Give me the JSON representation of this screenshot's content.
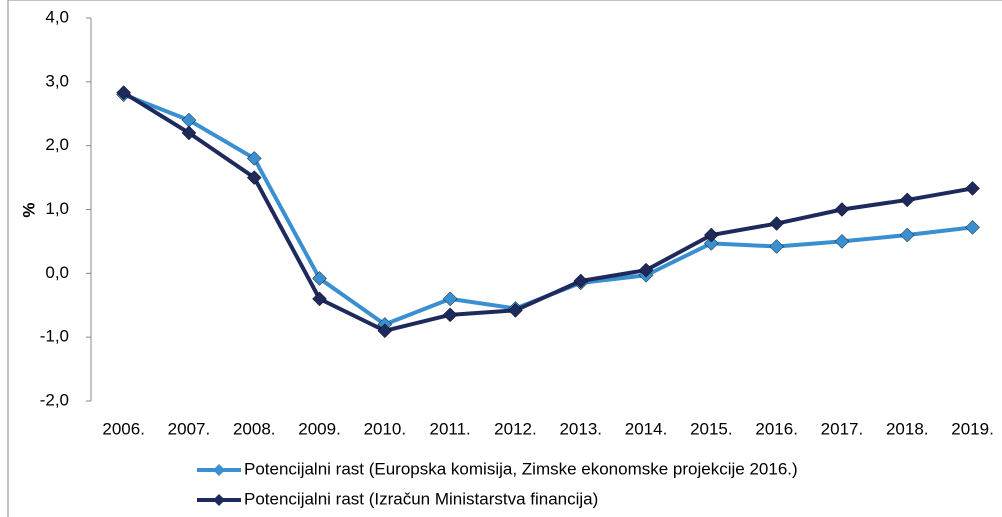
{
  "chart_data": {
    "type": "line",
    "ylabel": "%",
    "categories": [
      "2006.",
      "2007.",
      "2008.",
      "2009.",
      "2010.",
      "2011.",
      "2012.",
      "2013.",
      "2014.",
      "2015.",
      "2016.",
      "2017.",
      "2018.",
      "2019."
    ],
    "series": [
      {
        "name": "Potencijalni rast (Europska komisija, Zimske ekonomske projekcije 2016.)",
        "color": "#3a8fd0",
        "values": [
          2.8,
          2.4,
          1.8,
          -0.08,
          -0.8,
          -0.4,
          -0.55,
          -0.15,
          -0.03,
          0.47,
          0.42,
          0.5,
          0.6,
          0.72
        ]
      },
      {
        "name": "Potencijalni rast  (Izračun Ministarstva financija)",
        "color": "#1f2a5c",
        "values": [
          2.83,
          2.2,
          1.5,
          -0.4,
          -0.9,
          -0.65,
          -0.58,
          -0.12,
          0.05,
          0.6,
          0.78,
          1.0,
          1.15,
          1.33
        ]
      }
    ],
    "ylim": [
      -2,
      4
    ],
    "yticks": [
      {
        "value": -2,
        "label": "-2,0"
      },
      {
        "value": -1,
        "label": "-1,0"
      },
      {
        "value": 0,
        "label": "0,0"
      },
      {
        "value": 1,
        "label": "1,0"
      },
      {
        "value": 2,
        "label": "2,0"
      },
      {
        "value": 3,
        "label": "3,0"
      },
      {
        "value": 4,
        "label": "4,0"
      }
    ],
    "grid": false,
    "legend": "bottom"
  }
}
